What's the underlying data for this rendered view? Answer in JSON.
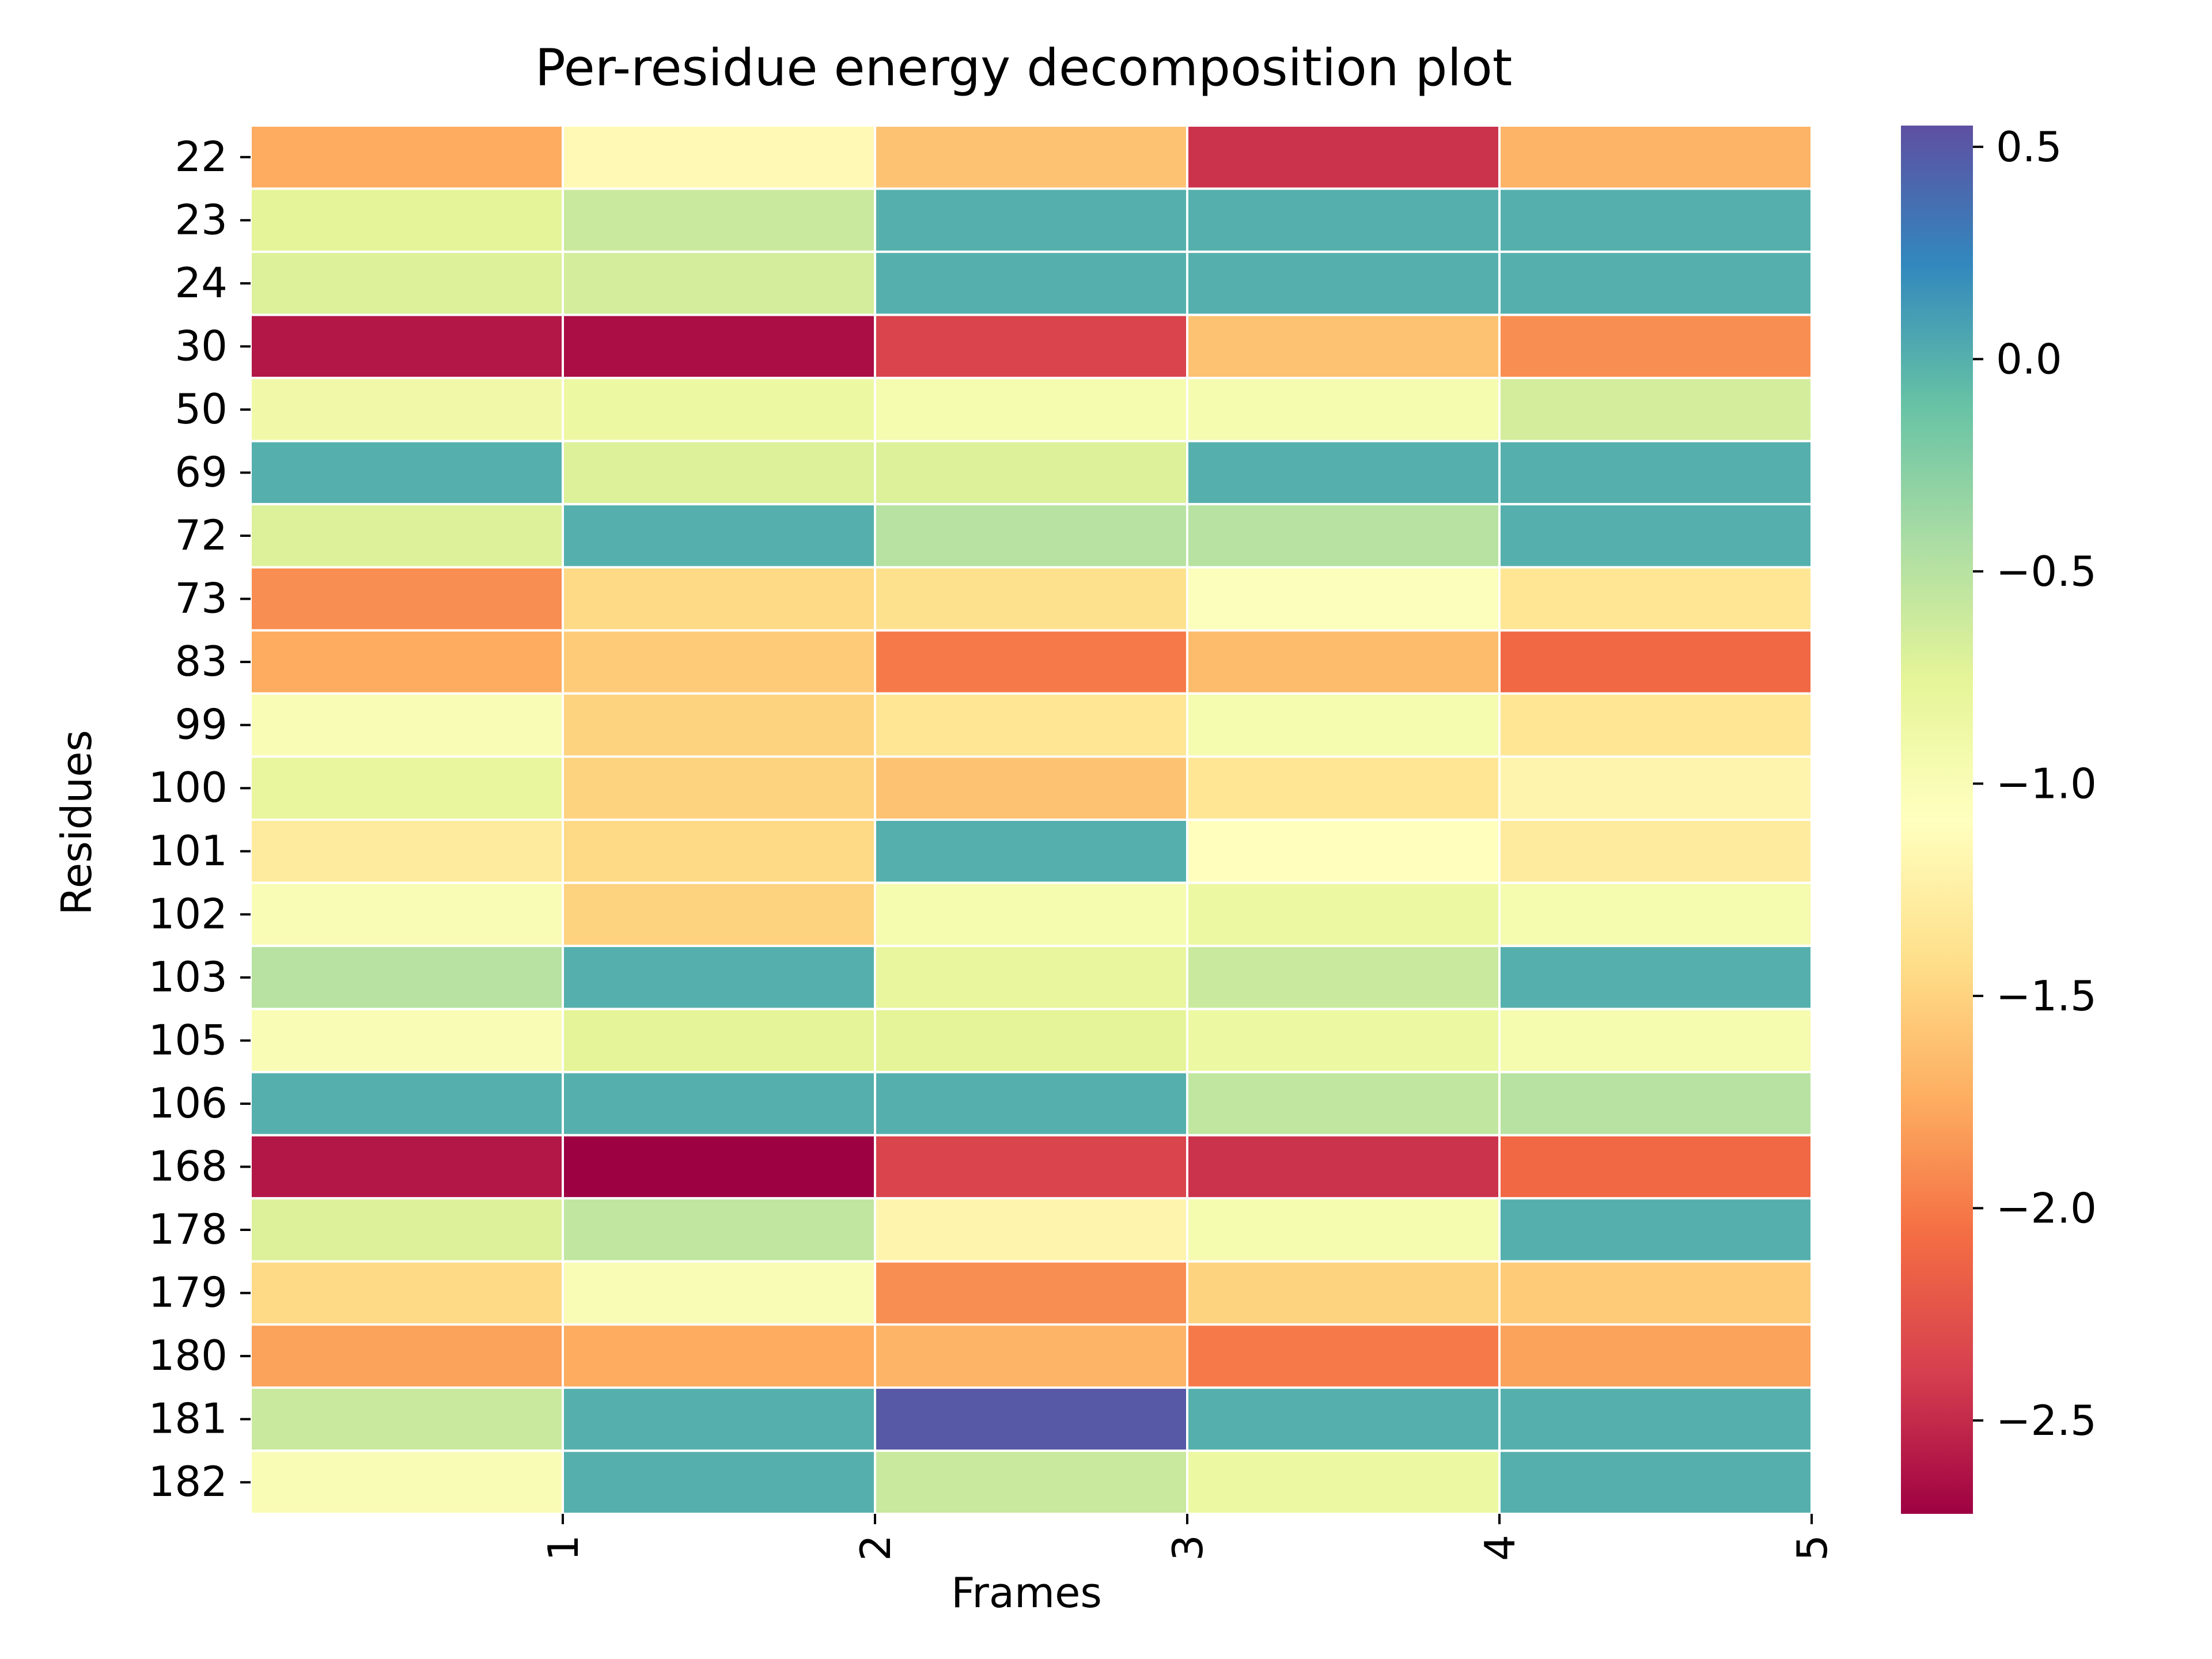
{
  "chart_data": {
    "type": "heatmap",
    "title": "Per-residue energy decomposition plot",
    "xlabel": "Frames",
    "ylabel": "Residues",
    "x_tick_labels": [
      "1",
      "2",
      "3",
      "4",
      "5"
    ],
    "rows": [
      "22",
      "23",
      "24",
      "30",
      "50",
      "69",
      "72",
      "73",
      "83",
      "99",
      "100",
      "101",
      "102",
      "103",
      "105",
      "106",
      "168",
      "178",
      "179",
      "180",
      "181",
      "182"
    ],
    "values": [
      [
        -1.75,
        -1.15,
        -1.6,
        -2.45,
        -1.7
      ],
      [
        -0.75,
        -0.6,
        0.0,
        0.0,
        0.0
      ],
      [
        -0.7,
        -0.65,
        0.0,
        0.0,
        0.0
      ],
      [
        -2.6,
        -2.65,
        -2.35,
        -1.6,
        -1.9
      ],
      [
        -0.9,
        -0.85,
        -0.95,
        -0.95,
        -0.65
      ],
      [
        0.0,
        -0.7,
        -0.7,
        0.0,
        0.0
      ],
      [
        -0.7,
        0.0,
        -0.5,
        -0.5,
        0.0
      ],
      [
        -1.9,
        -1.45,
        -1.4,
        -1.05,
        -1.35
      ],
      [
        -1.75,
        -1.55,
        -2.0,
        -1.65,
        -2.1
      ],
      [
        -1.0,
        -1.5,
        -1.35,
        -0.95,
        -1.35
      ],
      [
        -0.8,
        -1.5,
        -1.6,
        -1.35,
        -1.2
      ],
      [
        -1.3,
        -1.45,
        0.0,
        -1.1,
        -1.3
      ],
      [
        -1.0,
        -1.5,
        -0.95,
        -0.85,
        -0.95
      ],
      [
        -0.5,
        0.0,
        -0.8,
        -0.6,
        0.0
      ],
      [
        -1.0,
        -0.75,
        -0.75,
        -0.85,
        -0.95
      ],
      [
        0.0,
        0.0,
        0.0,
        -0.55,
        -0.5
      ],
      [
        -2.6,
        -2.72,
        -2.35,
        -2.45,
        -2.1
      ],
      [
        -0.7,
        -0.55,
        -1.2,
        -0.95,
        0.0
      ],
      [
        -1.45,
        -1.0,
        -1.9,
        -1.5,
        -1.55
      ],
      [
        -1.8,
        -1.75,
        -1.7,
        -2.0,
        -1.8
      ],
      [
        -0.6,
        0.0,
        0.5,
        0.0,
        0.0
      ],
      [
        -1.0,
        0.0,
        -0.6,
        -0.85,
        0.0
      ]
    ],
    "colorbar": {
      "vmin": -2.72,
      "vmax": 0.55,
      "tick_values": [
        0.5,
        0.0,
        -0.5,
        -1.0,
        -1.5,
        -2.0,
        -2.5
      ],
      "tick_labels": [
        "0.5",
        "0.0",
        "−0.5",
        "−1.0",
        "−1.5",
        "−2.0",
        "−2.5"
      ],
      "colormap": "Spectral",
      "colormap_stops": [
        "#9e0142",
        "#d53e4f",
        "#f46d43",
        "#fdae61",
        "#fee08b",
        "#ffffbf",
        "#e6f598",
        "#abdda4",
        "#66c2a5",
        "#3288bd",
        "#5e4fa2"
      ]
    },
    "grid": true,
    "cell_border_color": "#ffffff"
  }
}
